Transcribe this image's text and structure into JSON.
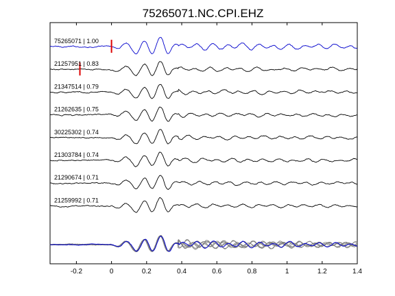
{
  "chart_data": {
    "type": "line",
    "title": "75265071.NC.CPI.EHZ",
    "xlabel": "",
    "ylabel": "",
    "xlim": [
      -0.35,
      1.4
    ],
    "xticks": [
      -0.2,
      0,
      0.2,
      0.4,
      0.6,
      0.8,
      1,
      1.2,
      1.4
    ],
    "xtick_labels": [
      "-0.2",
      "0",
      "0.2",
      "0.4",
      "0.6",
      "0.8",
      "1",
      "1.2",
      "1.4"
    ],
    "grid": false,
    "legend": "none",
    "colors": {
      "master": "#0000cc",
      "trace": "#000000",
      "stack": "#808080",
      "pick": "#dd0000"
    },
    "traces": [
      {
        "label": "75265071 | 1.00",
        "color": "#0000cc",
        "pick_time": 0.0
      },
      {
        "label": "21257951 | 0.83",
        "color": "#000000",
        "pick_time": -0.18
      },
      {
        "label": "21347514 | 0.79",
        "color": "#000000"
      },
      {
        "label": "21262635 | 0.75",
        "color": "#000000"
      },
      {
        "label": "30225302 | 0.74",
        "color": "#000000"
      },
      {
        "label": "21303784 | 0.74",
        "color": "#000000"
      },
      {
        "label": "21290674 | 0.71",
        "color": "#000000"
      },
      {
        "label": "21259992 | 0.71",
        "color": "#000000"
      }
    ],
    "waveform_main_peaks": [
      {
        "t": 0.04,
        "amp": -0.22
      },
      {
        "t": 0.08,
        "amp": 0.35
      },
      {
        "t": 0.14,
        "amp": -0.72
      },
      {
        "t": 0.19,
        "amp": 0.62
      },
      {
        "t": 0.23,
        "amp": -0.75
      },
      {
        "t": 0.28,
        "amp": 1.0
      },
      {
        "t": 0.32,
        "amp": -0.8
      },
      {
        "t": 0.36,
        "amp": 0.2
      }
    ]
  }
}
